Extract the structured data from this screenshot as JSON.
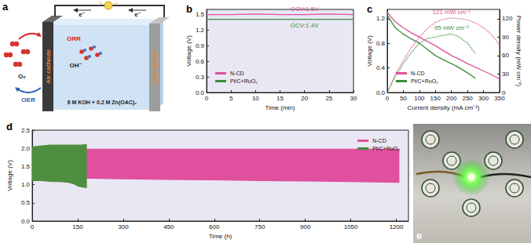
{
  "panels": {
    "a": {
      "label": "a",
      "electron_labels": [
        "e⁻",
        "e⁻"
      ],
      "cathode": "Air cathode",
      "anode": "Zinc anode",
      "gas": "O₂",
      "ion": "OH⁻",
      "reduction": "ORR",
      "evolution": "OER",
      "electrolyte": "6 M KOH + 0.2 M Zn(OAC)₂"
    },
    "e": {
      "label": "e"
    }
  },
  "chart_data": [
    {
      "title": "b",
      "type": "line",
      "x_label": "Time (min)",
      "y_label": "Voltage (V)",
      "xlim": [
        0,
        30
      ],
      "xticks": [
        0,
        5,
        10,
        15,
        20,
        25,
        30
      ],
      "ylim": [
        0,
        1.6
      ],
      "yticks": [
        {
          "value": 0,
          "label": "0.0"
        },
        0.3,
        0.6,
        0.9,
        1.2,
        1.5
      ],
      "grid": false,
      "legend": "lower left",
      "x": [
        0,
        5,
        10,
        15,
        20,
        25,
        30
      ],
      "series": [
        {
          "name": "N-CD",
          "color": "#e0509e",
          "values": [
            1.5,
            1.5,
            1.51,
            1.5,
            1.5,
            1.51,
            1.5
          ],
          "annotation": "OCV:1.5V"
        },
        {
          "name": "Pt/C+RuO₂",
          "color": "#3d8c3a",
          "values": [
            1.41,
            1.41,
            1.41,
            1.41,
            1.41,
            1.41,
            1.41
          ],
          "annotation": "OCV:1.4V"
        }
      ]
    },
    {
      "title": "c",
      "type": "line",
      "x_label": "Current density (mA cm⁻²)",
      "y_label": "Voltage (V)",
      "y2_label": "Power density (mW cm⁻²)",
      "xlim": [
        0,
        350
      ],
      "xticks": [
        0,
        50,
        100,
        150,
        200,
        250,
        300,
        350
      ],
      "ylim": [
        0,
        1.35
      ],
      "yticks": [
        {
          "value": 0,
          "label": "0.0"
        },
        0.4,
        0.8,
        1.2
      ],
      "y2lim": [
        0,
        135
      ],
      "y2ticks": [
        0,
        30,
        60,
        90,
        120
      ],
      "grid": false,
      "legend": "lower left",
      "series": [
        {
          "name": "N-CD",
          "color": "#e0509e",
          "x": [
            0,
            25,
            50,
            75,
            100,
            125,
            150,
            175,
            200,
            225,
            250,
            275,
            300,
            325,
            350
          ],
          "values": [
            1.3,
            1.15,
            1.05,
            0.97,
            0.9,
            0.83,
            0.76,
            0.68,
            0.6,
            0.54,
            0.47,
            0.41,
            0.35,
            0.29,
            0.22
          ]
        },
        {
          "name": "Pt/C+RuO₂",
          "color": "#3d8c3a",
          "x": [
            0,
            25,
            50,
            75,
            100,
            125,
            150,
            175,
            200,
            225,
            250,
            275
          ],
          "values": [
            1.26,
            1.05,
            0.95,
            0.87,
            0.8,
            0.7,
            0.6,
            0.53,
            0.47,
            0.4,
            0.32,
            0.23
          ]
        },
        {
          "name": "N-CD",
          "color": "#e0509e",
          "axis": "y2",
          "line_style": "dotted",
          "annotation": "121 mW cm⁻²",
          "x": [
            0,
            25,
            50,
            75,
            100,
            125,
            150,
            175,
            200,
            225,
            250,
            275,
            300,
            325,
            350
          ],
          "values": [
            0,
            29,
            52,
            73,
            90,
            104,
            114,
            119,
            121,
            120,
            118,
            113,
            105,
            94,
            77
          ]
        },
        {
          "name": "Pt/C+RuO₂",
          "color": "#3d8c3a",
          "axis": "y2",
          "line_style": "dotted",
          "annotation": "95 mW cm⁻²",
          "x": [
            0,
            25,
            50,
            75,
            100,
            125,
            150,
            175,
            200,
            225,
            250,
            275
          ],
          "values": [
            0,
            26,
            47,
            65,
            80,
            88,
            90,
            93,
            95,
            90,
            80,
            63
          ]
        }
      ]
    },
    {
      "title": "d",
      "type": "band",
      "x_label": "Time (h)",
      "y_label": "Voltage (V)",
      "xlim": [
        0,
        1240
      ],
      "xticks": [
        0,
        150,
        300,
        450,
        600,
        750,
        900,
        1050,
        1200
      ],
      "ylim": [
        0,
        2.5
      ],
      "yticks": [
        {
          "value": 0,
          "label": "0.0"
        },
        0.5,
        {
          "value": 1,
          "label": "1.0"
        },
        1.5,
        {
          "value": 2,
          "label": "2.0"
        },
        2.5
      ],
      "grid": false,
      "legend": "upper right",
      "series": [
        {
          "name": "N-CD",
          "color": "#e0509e",
          "x": [
            0,
            150,
            300,
            450,
            600,
            750,
            900,
            1050,
            1210
          ],
          "upper": [
            1.98,
            1.99,
            1.99,
            1.99,
            1.99,
            1.99,
            1.99,
            1.99,
            1.99
          ],
          "lower": [
            1.18,
            1.17,
            1.15,
            1.13,
            1.12,
            1.1,
            1.09,
            1.07,
            1.05
          ]
        },
        {
          "name": "Pt/C+RuO₂",
          "color": "#4e8f3e",
          "x": [
            0,
            30,
            60,
            90,
            120,
            140,
            150,
            160,
            180
          ],
          "upper": [
            2.05,
            2.08,
            2.1,
            2.1,
            2.1,
            2.1,
            2.1,
            2.1,
            2.12
          ],
          "lower": [
            1.1,
            1.1,
            1.08,
            1.07,
            1.05,
            1.0,
            0.95,
            0.93,
            0.9
          ]
        }
      ]
    }
  ]
}
